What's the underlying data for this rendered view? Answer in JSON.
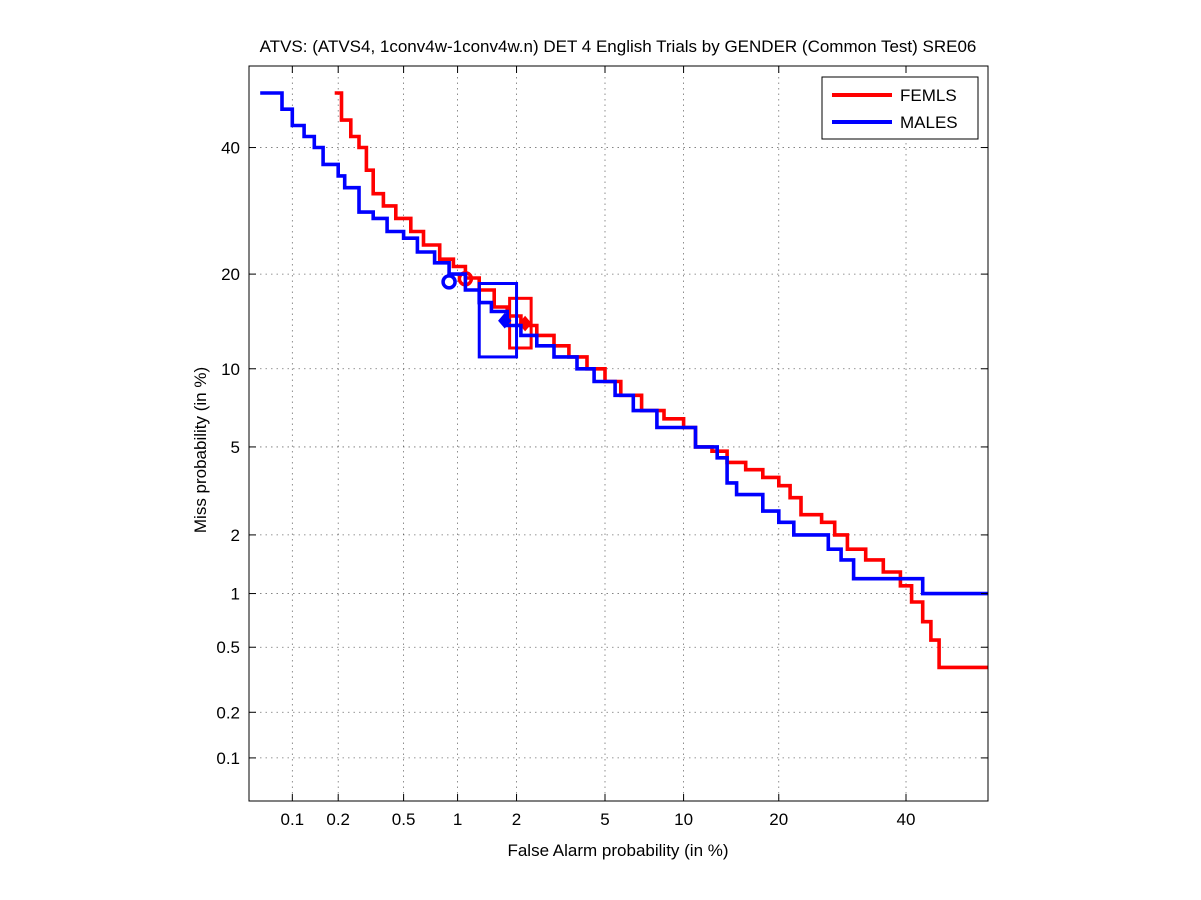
{
  "chart_data": {
    "type": "line",
    "title": "ATVS: (ATVS4, 1conv4w-1conv4w.n) DET 4 English Trials by GENDER (Common Test) SRE06",
    "xlabel": "False Alarm probability (in %)",
    "ylabel": "Miss probability (in %)",
    "scale": "normal-deviate (probit)",
    "xlim": [
      0.05,
      55
    ],
    "ylim": [
      0.05,
      55
    ],
    "x_ticks": [
      0.1,
      0.2,
      0.5,
      1,
      2,
      5,
      10,
      20,
      40
    ],
    "x_tick_labels": [
      "0.1",
      "0.2",
      "0.5",
      "1",
      "2",
      "5",
      "10",
      "20",
      "40"
    ],
    "y_ticks": [
      0.1,
      0.2,
      0.5,
      1,
      2,
      5,
      10,
      20,
      40
    ],
    "y_tick_labels": [
      "0.1",
      "0.2",
      "0.5",
      "1",
      "2",
      "5",
      "10",
      "20",
      "40"
    ],
    "grid": true,
    "legend_position": "top-right",
    "series": [
      {
        "name": "FEMLS",
        "color": "#ff0000",
        "points": [
          [
            0.19,
            50
          ],
          [
            0.21,
            45
          ],
          [
            0.24,
            42
          ],
          [
            0.27,
            40
          ],
          [
            0.3,
            36
          ],
          [
            0.33,
            32
          ],
          [
            0.38,
            30
          ],
          [
            0.45,
            28
          ],
          [
            0.55,
            26
          ],
          [
            0.65,
            24
          ],
          [
            0.8,
            22
          ],
          [
            0.95,
            21
          ],
          [
            1.1,
            19.5
          ],
          [
            1.3,
            18
          ],
          [
            1.55,
            16
          ],
          [
            1.8,
            15
          ],
          [
            2.1,
            14
          ],
          [
            2.5,
            13
          ],
          [
            3.0,
            12
          ],
          [
            3.5,
            11
          ],
          [
            4.2,
            10
          ],
          [
            5.0,
            9
          ],
          [
            5.8,
            8
          ],
          [
            7.0,
            7
          ],
          [
            8.5,
            6.5
          ],
          [
            10.0,
            6
          ],
          [
            11.0,
            5
          ],
          [
            12.5,
            4.8
          ],
          [
            14.0,
            4.3
          ],
          [
            16.0,
            4.0
          ],
          [
            18.0,
            3.7
          ],
          [
            20.0,
            3.4
          ],
          [
            21.5,
            3.0
          ],
          [
            23.0,
            2.5
          ],
          [
            26.0,
            2.3
          ],
          [
            28.0,
            2.0
          ],
          [
            30.0,
            1.7
          ],
          [
            33.0,
            1.5
          ],
          [
            36.0,
            1.3
          ],
          [
            39.0,
            1.1
          ],
          [
            41.0,
            0.9
          ],
          [
            43.0,
            0.7
          ],
          [
            44.5,
            0.55
          ],
          [
            46.0,
            0.38
          ],
          [
            55,
            0.38
          ]
        ],
        "min_dcf_point": [
          1.1,
          19.4
        ],
        "act_dcf_point": [
          2.2,
          14.2
        ],
        "confidence_box": {
          "x": [
            1.85,
            2.35
          ],
          "y": [
            11.8,
            17.0
          ]
        }
      },
      {
        "name": "MALES",
        "color": "#0000ff",
        "points": [
          [
            0.06,
            50
          ],
          [
            0.085,
            47
          ],
          [
            0.1,
            44
          ],
          [
            0.12,
            42
          ],
          [
            0.14,
            40
          ],
          [
            0.16,
            37
          ],
          [
            0.2,
            35
          ],
          [
            0.22,
            33
          ],
          [
            0.27,
            29
          ],
          [
            0.33,
            28
          ],
          [
            0.4,
            26
          ],
          [
            0.5,
            25
          ],
          [
            0.6,
            23
          ],
          [
            0.75,
            21.5
          ],
          [
            0.9,
            20
          ],
          [
            1.1,
            18
          ],
          [
            1.3,
            16.5
          ],
          [
            1.5,
            15.5
          ],
          [
            1.8,
            14
          ],
          [
            2.1,
            13
          ],
          [
            2.5,
            12
          ],
          [
            3.0,
            11
          ],
          [
            3.8,
            10
          ],
          [
            4.5,
            9
          ],
          [
            5.5,
            8
          ],
          [
            6.5,
            7
          ],
          [
            8.0,
            6
          ],
          [
            10.0,
            6
          ],
          [
            11.0,
            5
          ],
          [
            13.0,
            4.5
          ],
          [
            14.0,
            3.5
          ],
          [
            15.0,
            3.1
          ],
          [
            17.0,
            3.1
          ],
          [
            18.0,
            2.6
          ],
          [
            20.0,
            2.3
          ],
          [
            22.0,
            2.0
          ],
          [
            25.0,
            2.0
          ],
          [
            27.0,
            1.7
          ],
          [
            29.0,
            1.5
          ],
          [
            31.0,
            1.2
          ],
          [
            42.0,
            1.2
          ],
          [
            43.0,
            1.0
          ],
          [
            55,
            1.0
          ]
        ],
        "min_dcf_point": [
          0.9,
          19.0
        ],
        "act_dcf_point": [
          1.75,
          14.5
        ],
        "confidence_box": {
          "x": [
            1.3,
            2.0
          ],
          "y": [
            11.0,
            18.8
          ]
        }
      }
    ]
  }
}
